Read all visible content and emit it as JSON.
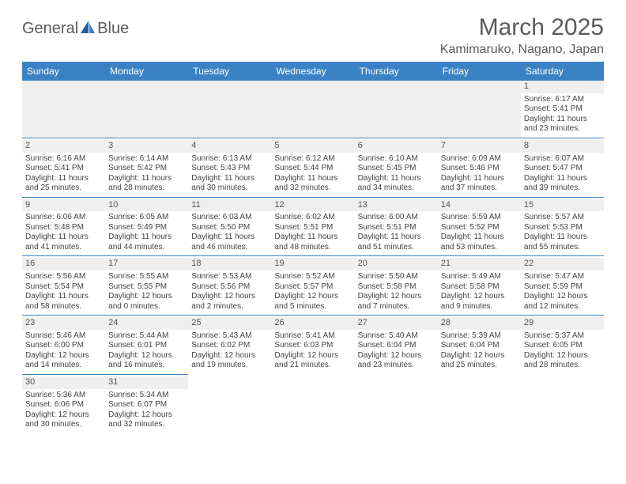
{
  "logo": {
    "general": "General",
    "blue": "Blue"
  },
  "title": "March 2025",
  "location": "Kamimaruko, Nagano, Japan",
  "colors": {
    "header_bg": "#3b82c4",
    "header_text": "#ffffff",
    "daynum_bg": "#efefef",
    "rule": "#3b82c4",
    "text": "#444444",
    "title_text": "#5a5a5a"
  },
  "weekdays": [
    "Sunday",
    "Monday",
    "Tuesday",
    "Wednesday",
    "Thursday",
    "Friday",
    "Saturday"
  ],
  "leading_blanks": 6,
  "days": [
    {
      "n": 1,
      "sunrise": "6:17 AM",
      "sunset": "5:41 PM",
      "daylight": "11 hours and 23 minutes."
    },
    {
      "n": 2,
      "sunrise": "6:16 AM",
      "sunset": "5:41 PM",
      "daylight": "11 hours and 25 minutes."
    },
    {
      "n": 3,
      "sunrise": "6:14 AM",
      "sunset": "5:42 PM",
      "daylight": "11 hours and 28 minutes."
    },
    {
      "n": 4,
      "sunrise": "6:13 AM",
      "sunset": "5:43 PM",
      "daylight": "11 hours and 30 minutes."
    },
    {
      "n": 5,
      "sunrise": "6:12 AM",
      "sunset": "5:44 PM",
      "daylight": "11 hours and 32 minutes."
    },
    {
      "n": 6,
      "sunrise": "6:10 AM",
      "sunset": "5:45 PM",
      "daylight": "11 hours and 34 minutes."
    },
    {
      "n": 7,
      "sunrise": "6:09 AM",
      "sunset": "5:46 PM",
      "daylight": "11 hours and 37 minutes."
    },
    {
      "n": 8,
      "sunrise": "6:07 AM",
      "sunset": "5:47 PM",
      "daylight": "11 hours and 39 minutes."
    },
    {
      "n": 9,
      "sunrise": "6:06 AM",
      "sunset": "5:48 PM",
      "daylight": "11 hours and 41 minutes."
    },
    {
      "n": 10,
      "sunrise": "6:05 AM",
      "sunset": "5:49 PM",
      "daylight": "11 hours and 44 minutes."
    },
    {
      "n": 11,
      "sunrise": "6:03 AM",
      "sunset": "5:50 PM",
      "daylight": "11 hours and 46 minutes."
    },
    {
      "n": 12,
      "sunrise": "6:02 AM",
      "sunset": "5:51 PM",
      "daylight": "11 hours and 48 minutes."
    },
    {
      "n": 13,
      "sunrise": "6:00 AM",
      "sunset": "5:51 PM",
      "daylight": "11 hours and 51 minutes."
    },
    {
      "n": 14,
      "sunrise": "5:59 AM",
      "sunset": "5:52 PM",
      "daylight": "11 hours and 53 minutes."
    },
    {
      "n": 15,
      "sunrise": "5:57 AM",
      "sunset": "5:53 PM",
      "daylight": "11 hours and 55 minutes."
    },
    {
      "n": 16,
      "sunrise": "5:56 AM",
      "sunset": "5:54 PM",
      "daylight": "11 hours and 58 minutes."
    },
    {
      "n": 17,
      "sunrise": "5:55 AM",
      "sunset": "5:55 PM",
      "daylight": "12 hours and 0 minutes."
    },
    {
      "n": 18,
      "sunrise": "5:53 AM",
      "sunset": "5:56 PM",
      "daylight": "12 hours and 2 minutes."
    },
    {
      "n": 19,
      "sunrise": "5:52 AM",
      "sunset": "5:57 PM",
      "daylight": "12 hours and 5 minutes."
    },
    {
      "n": 20,
      "sunrise": "5:50 AM",
      "sunset": "5:58 PM",
      "daylight": "12 hours and 7 minutes."
    },
    {
      "n": 21,
      "sunrise": "5:49 AM",
      "sunset": "5:58 PM",
      "daylight": "12 hours and 9 minutes."
    },
    {
      "n": 22,
      "sunrise": "5:47 AM",
      "sunset": "5:59 PM",
      "daylight": "12 hours and 12 minutes."
    },
    {
      "n": 23,
      "sunrise": "5:46 AM",
      "sunset": "6:00 PM",
      "daylight": "12 hours and 14 minutes."
    },
    {
      "n": 24,
      "sunrise": "5:44 AM",
      "sunset": "6:01 PM",
      "daylight": "12 hours and 16 minutes."
    },
    {
      "n": 25,
      "sunrise": "5:43 AM",
      "sunset": "6:02 PM",
      "daylight": "12 hours and 19 minutes."
    },
    {
      "n": 26,
      "sunrise": "5:41 AM",
      "sunset": "6:03 PM",
      "daylight": "12 hours and 21 minutes."
    },
    {
      "n": 27,
      "sunrise": "5:40 AM",
      "sunset": "6:04 PM",
      "daylight": "12 hours and 23 minutes."
    },
    {
      "n": 28,
      "sunrise": "5:39 AM",
      "sunset": "6:04 PM",
      "daylight": "12 hours and 25 minutes."
    },
    {
      "n": 29,
      "sunrise": "5:37 AM",
      "sunset": "6:05 PM",
      "daylight": "12 hours and 28 minutes."
    },
    {
      "n": 30,
      "sunrise": "5:36 AM",
      "sunset": "6:06 PM",
      "daylight": "12 hours and 30 minutes."
    },
    {
      "n": 31,
      "sunrise": "5:34 AM",
      "sunset": "6:07 PM",
      "daylight": "12 hours and 32 minutes."
    }
  ],
  "labels": {
    "sunrise": "Sunrise:",
    "sunset": "Sunset:",
    "daylight": "Daylight:"
  }
}
